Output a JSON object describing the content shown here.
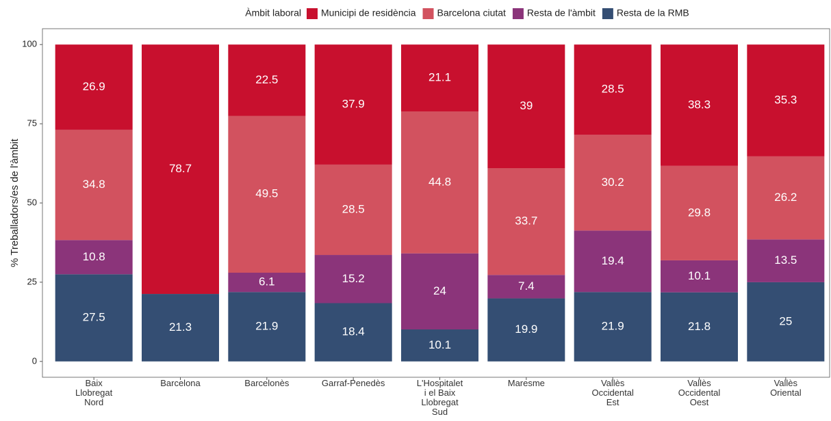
{
  "chart_data": {
    "type": "stacked_bar",
    "y_label": "% Treballadors/es de l'àmbit",
    "legend_title": "Àmbit laboral",
    "categories": [
      "Baix\nLlobregat\nNord",
      "Barcelona",
      "Barcelonès",
      "Garraf-Penedès",
      "L'Hospitalet\ni el Baix\nLlobregat\nSud",
      "Maresme",
      "Vallès\nOccidental\nEst",
      "Vallès\nOccidental\nOest",
      "Vallès\nOriental"
    ],
    "series": [
      {
        "name": "Resta de la RMB",
        "color": "#344e73",
        "values": [
          27.5,
          21.3,
          21.9,
          18.4,
          10.1,
          19.9,
          21.9,
          21.8,
          25
        ]
      },
      {
        "name": "Resta de l'àmbit",
        "color": "#8b347a",
        "values": [
          10.8,
          null,
          6.1,
          15.2,
          24,
          7.4,
          19.4,
          10.1,
          13.5
        ]
      },
      {
        "name": "Barcelona ciutat",
        "color": "#d2525f",
        "values": [
          34.8,
          null,
          49.5,
          28.5,
          44.8,
          33.7,
          30.2,
          29.8,
          26.2
        ]
      },
      {
        "name": "Municipi de residència",
        "color": "#c8102e",
        "values": [
          26.9,
          78.7,
          22.5,
          37.9,
          21.1,
          39,
          28.5,
          38.3,
          35.3
        ]
      }
    ],
    "legend_order": [
      3,
      2,
      1,
      0
    ],
    "ylim": [
      -5,
      105
    ],
    "yticks": [
      0,
      25,
      50,
      75,
      100
    ]
  }
}
